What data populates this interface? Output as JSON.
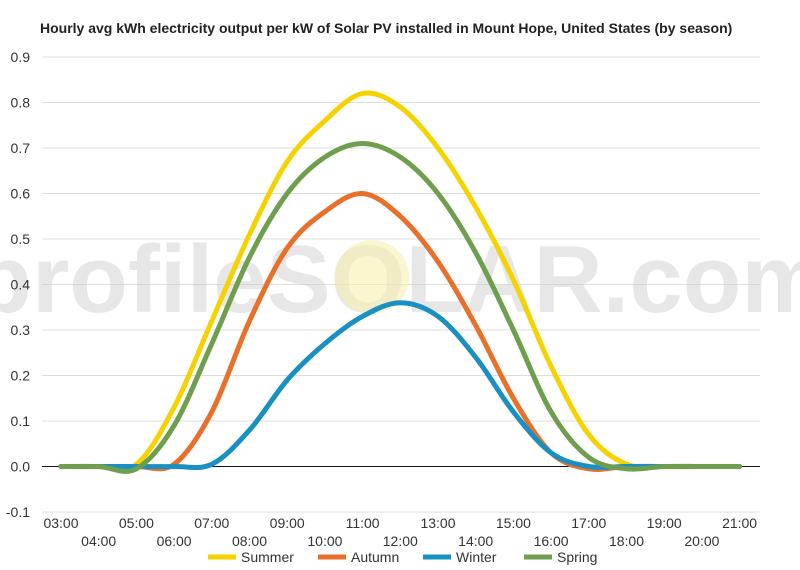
{
  "chart_data": {
    "type": "line",
    "title": "Hourly avg kWh electricity output per kW of Solar PV installed in Mount Hope, United States (by season)",
    "xlabel": "",
    "ylabel": "",
    "x": [
      "03:00",
      "04:00",
      "05:00",
      "06:00",
      "07:00",
      "08:00",
      "09:00",
      "10:00",
      "11:00",
      "12:00",
      "13:00",
      "14:00",
      "15:00",
      "16:00",
      "17:00",
      "18:00",
      "19:00",
      "20:00",
      "21:00"
    ],
    "ylim": [
      -0.1,
      0.9
    ],
    "yticks": [
      "-0.1",
      "0.0",
      "0.1",
      "0.2",
      "0.3",
      "0.4",
      "0.5",
      "0.6",
      "0.7",
      "0.8",
      "0.9"
    ],
    "grid": true,
    "legend": "bottom",
    "watermark": "profileSOLAR.com",
    "series": [
      {
        "name": "Summer",
        "color": "#f5d300",
        "values": [
          0,
          0,
          0.005,
          0.13,
          0.32,
          0.51,
          0.67,
          0.76,
          0.82,
          0.79,
          0.7,
          0.57,
          0.41,
          0.22,
          0.07,
          0.005,
          0,
          0,
          0
        ]
      },
      {
        "name": "Autumn",
        "color": "#e8702a",
        "values": [
          0,
          0,
          0,
          0.005,
          0.12,
          0.32,
          0.48,
          0.56,
          0.6,
          0.55,
          0.45,
          0.31,
          0.15,
          0.03,
          -0.005,
          0,
          0,
          0,
          0
        ]
      },
      {
        "name": "Winter",
        "color": "#1a8fc1",
        "values": [
          0,
          0,
          0,
          0,
          0.005,
          0.08,
          0.19,
          0.27,
          0.33,
          0.36,
          0.33,
          0.24,
          0.12,
          0.03,
          0,
          0,
          0,
          0,
          0
        ]
      },
      {
        "name": "Spring",
        "color": "#6e9e4e",
        "values": [
          0,
          0,
          -0.005,
          0.09,
          0.27,
          0.46,
          0.6,
          0.68,
          0.71,
          0.68,
          0.6,
          0.47,
          0.3,
          0.12,
          0.02,
          -0.005,
          0,
          0,
          0
        ]
      }
    ]
  }
}
